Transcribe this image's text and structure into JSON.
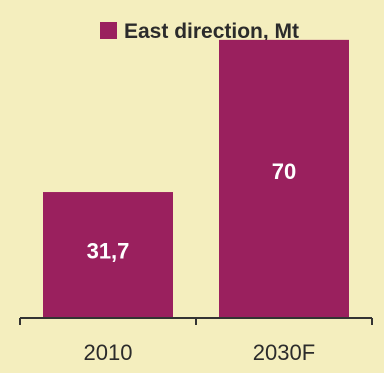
{
  "colors": {
    "background": "#f4eebe",
    "bar": "#9a205e",
    "axis": "#333333",
    "bar_label": "#ffffff",
    "text": "#2b2b2b"
  },
  "chart_data": {
    "type": "bar",
    "categories": [
      "2010",
      "2030F"
    ],
    "series": [
      {
        "name": "East direction, Mt",
        "values": [
          31.7,
          70
        ]
      }
    ],
    "data_labels": [
      "31,7",
      "70"
    ],
    "legend_position": "top",
    "ylim": [
      0,
      75
    ],
    "grid": false
  }
}
